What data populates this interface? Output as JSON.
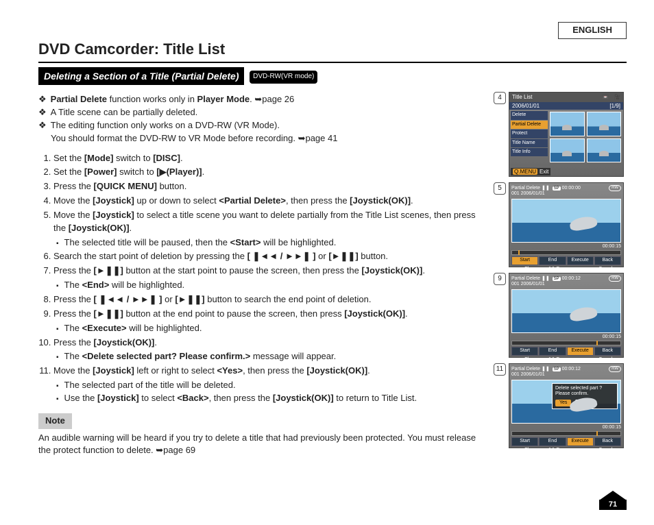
{
  "language": "ENGLISH",
  "title": "DVD Camcorder: Title List",
  "subtitle": "Deleting a Section of a Title (Partial Delete)",
  "badge": "DVD-RW(VR mode)",
  "page_number": "71",
  "bullets": [
    "<b>Partial Delete</b> function works only in <b>Player Mode</b>. ➥page 26",
    "A Title scene can be partially deleted.",
    "The editing function only works on a DVD-RW (VR Mode).<br>You should format the DVD-RW to VR Mode before recording. ➥page 41"
  ],
  "steps_html": "<li>Set the <b>[Mode]</b> switch to <b>[DISC]</b>.</li><li>Set the <b>[Power]</b> switch to <b>[▶(Player)]</b>.</li><li>Press the <b>[QUICK MENU]</b> button.</li><li>Move the <b>[Joystick]</b> up or down to select <b>&lt;Partial Delete&gt;</b>, then press the <b>[Joystick(OK)]</b>.</li><li>Move the <b>[Joystick]</b> to select a title scene you want to delete partially from the Title List scenes, then press the <b>[Joystick(OK)]</b>.<ul class='sub'><li>The selected title will be paused, then the <b>&lt;Start&gt;</b> will be highlighted.</li></ul></li><li>Search the start point of deletion by pressing the <b>[ ❚◄◄ / ►►❚ ]</b> or <b>[►❚❚]</b> button.</li><li>Press the <b>[►❚❚]</b> button at the start point to pause the screen, then press the <b>[Joystick(OK)]</b>.<ul class='sub'><li>The <b>&lt;End&gt;</b> will be highlighted.</li></ul></li><li>Press the <b>[ ❚◄◄ / ►►❚ ]</b> or <b>[►❚❚]</b> button to search the end point of deletion.</li><li>Press the <b>[►❚❚]</b> button at the end point to pause the screen, then press <b>[Joystick(OK)]</b>.<ul class='sub'><li>The <b>&lt;Execute&gt;</b> will be highlighted.</li></ul></li><li>Press the <b>[Joystick(OK)]</b>.<ul class='sub'><li>The <b>&lt;Delete selected part? Please confirm.&gt;</b> message will appear.</li></ul></li><li>Move the <b>[Joystick]</b> left or right to select <b>&lt;Yes&gt;</b>, then press the <b>[Joystick(OK)]</b>.<ul class='sub'><li>The selected part of the title will be deleted.</li><li>Use the <b>[Joystick]</b> to select <b>&lt;Back&gt;</b>, then press the <b>[Joystick(OK)]</b> to return to Title List.</li></ul></li>",
  "note_label": "Note",
  "note_text": "An audible warning will be heard if you try to delete a title that had previously been protected. You must release the protect function to delete. ➥page 69",
  "panel4": {
    "num": "4",
    "header": "Title List",
    "date": "2006/01/01",
    "index": "[1/9]",
    "menu": [
      "Delete",
      "Partial Delete",
      "Protect",
      "Title Name",
      "Title Info"
    ],
    "menu_selected": 1,
    "exit_btn": "Q.MENU",
    "exit_label": "Exit"
  },
  "panel5": {
    "num": "5",
    "label": "Partial Delete",
    "sp": "SP",
    "rw": "RW",
    "clip": "001 2006/01/01",
    "time_cur": "00:00:00",
    "time_total": "00:00:15",
    "opts": [
      "Start",
      "End",
      "Execute",
      "Back"
    ],
    "opt_selected": 0,
    "controls": [
      "Play",
      "Pause",
      "Search"
    ]
  },
  "panel9": {
    "num": "9",
    "label": "Partial Delete",
    "sp": "SP",
    "rw": "RW",
    "clip": "001 2006/01/01",
    "time_cur": "00:00:12",
    "time_total": "00:00:15",
    "opts": [
      "Start",
      "End",
      "Execute",
      "Back"
    ],
    "opt_selected": 2,
    "controls": [
      "Play",
      "Pause",
      "Search"
    ]
  },
  "panel11": {
    "num": "11",
    "label": "Partial Delete",
    "sp": "SP",
    "rw": "RW",
    "clip": "001 2006/01/01",
    "time_cur": "00:00:12",
    "time_total": "00:00:15",
    "opts": [
      "Start",
      "End",
      "Execute",
      "Back"
    ],
    "opt_selected": 2,
    "controls": [
      "Play",
      "Pause",
      "Search"
    ],
    "dialog_line1": "Delete selected part ?",
    "dialog_line2": "Please confirm.",
    "dialog_yes": "Yes",
    "dialog_no": "No",
    "dialog_selected": 0
  }
}
